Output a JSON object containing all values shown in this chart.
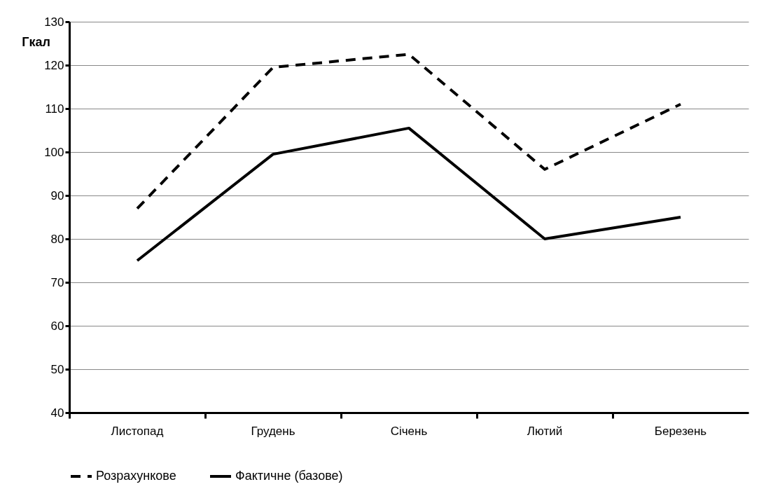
{
  "chart_data": {
    "type": "line",
    "ylabel": "Гкал",
    "categories": [
      "Листопад",
      "Грудень",
      "Січень",
      "Лютий",
      "Березень"
    ],
    "series": [
      {
        "name": "Розрахункове",
        "color": "#000000",
        "line_style": "dashed",
        "values": [
          87,
          119.5,
          122.5,
          96,
          111
        ]
      },
      {
        "name": "Фактичне (базове)",
        "color": "#000000",
        "line_style": "solid",
        "values": [
          75,
          99.5,
          105.5,
          80,
          85
        ]
      }
    ],
    "ylim": [
      40,
      130
    ],
    "yticks": [
      40,
      50,
      60,
      70,
      80,
      90,
      100,
      110,
      120,
      130
    ],
    "grid": "y",
    "legend": "bottom",
    "marker": "none"
  }
}
